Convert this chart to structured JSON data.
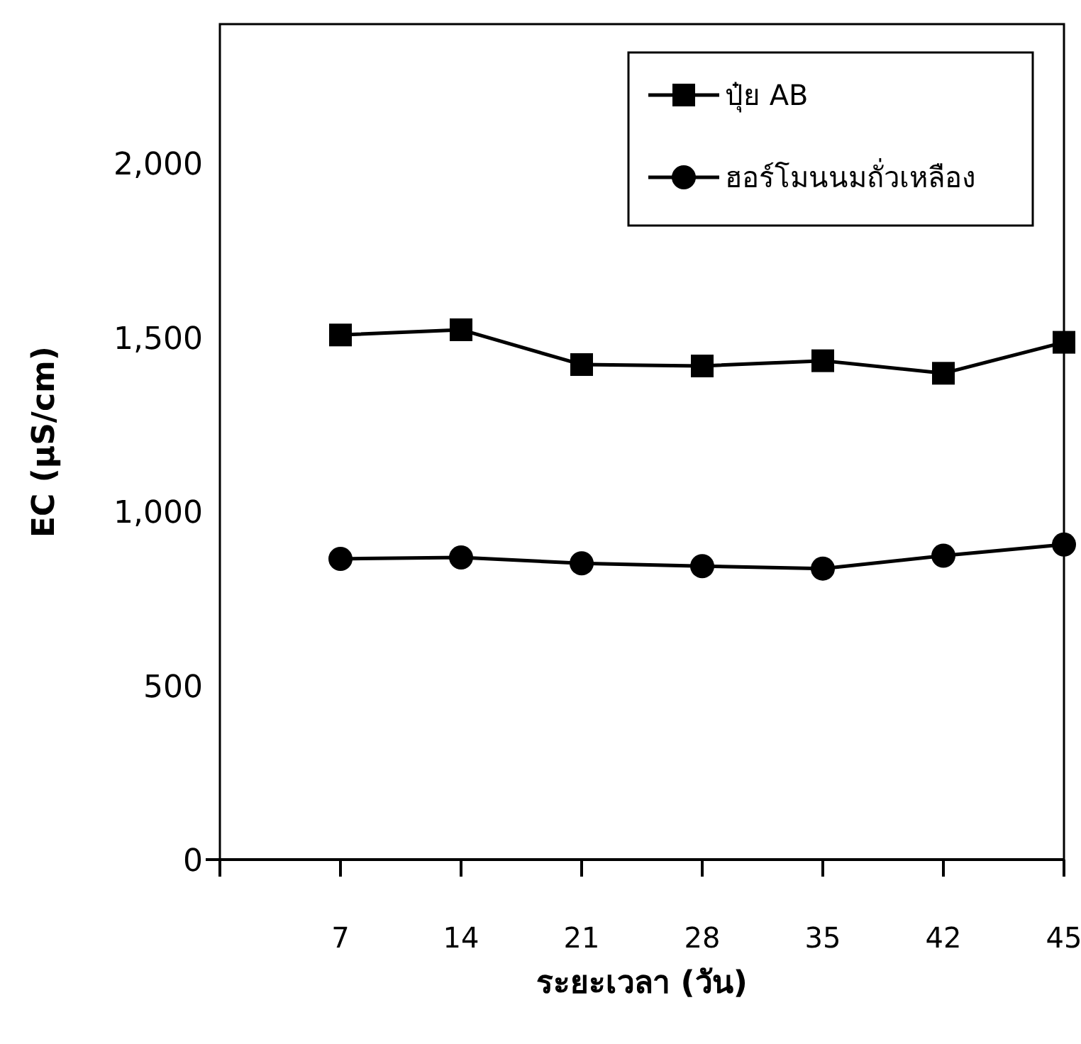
{
  "chart_data": {
    "type": "line",
    "xlabel": "ระยะเวลา (วัน)",
    "ylabel": "EC (µS/cm)",
    "categories": [
      "7",
      "14",
      "21",
      "28",
      "35",
      "42",
      "45"
    ],
    "series": [
      {
        "name": "ปุ๋ย AB",
        "color": "#000000",
        "marker": "square",
        "values": [
          1507,
          1522,
          1422,
          1418,
          1433,
          1397,
          1486
        ]
      },
      {
        "name": "ฮอร์โมนนมถั่วเหลือง",
        "color": "#000000",
        "marker": "circle",
        "values": [
          864,
          868,
          851,
          843,
          836,
          873,
          905
        ]
      }
    ],
    "ylim": [
      0,
      2400
    ],
    "yticks": [
      {
        "value": 0,
        "label": "0"
      },
      {
        "value": 500,
        "label": "500"
      },
      {
        "value": 1000,
        "label": "1,000"
      },
      {
        "value": 1500,
        "label": "1,500"
      },
      {
        "value": 2000,
        "label": "2,000"
      }
    ],
    "legend": "top right",
    "grid": false
  }
}
